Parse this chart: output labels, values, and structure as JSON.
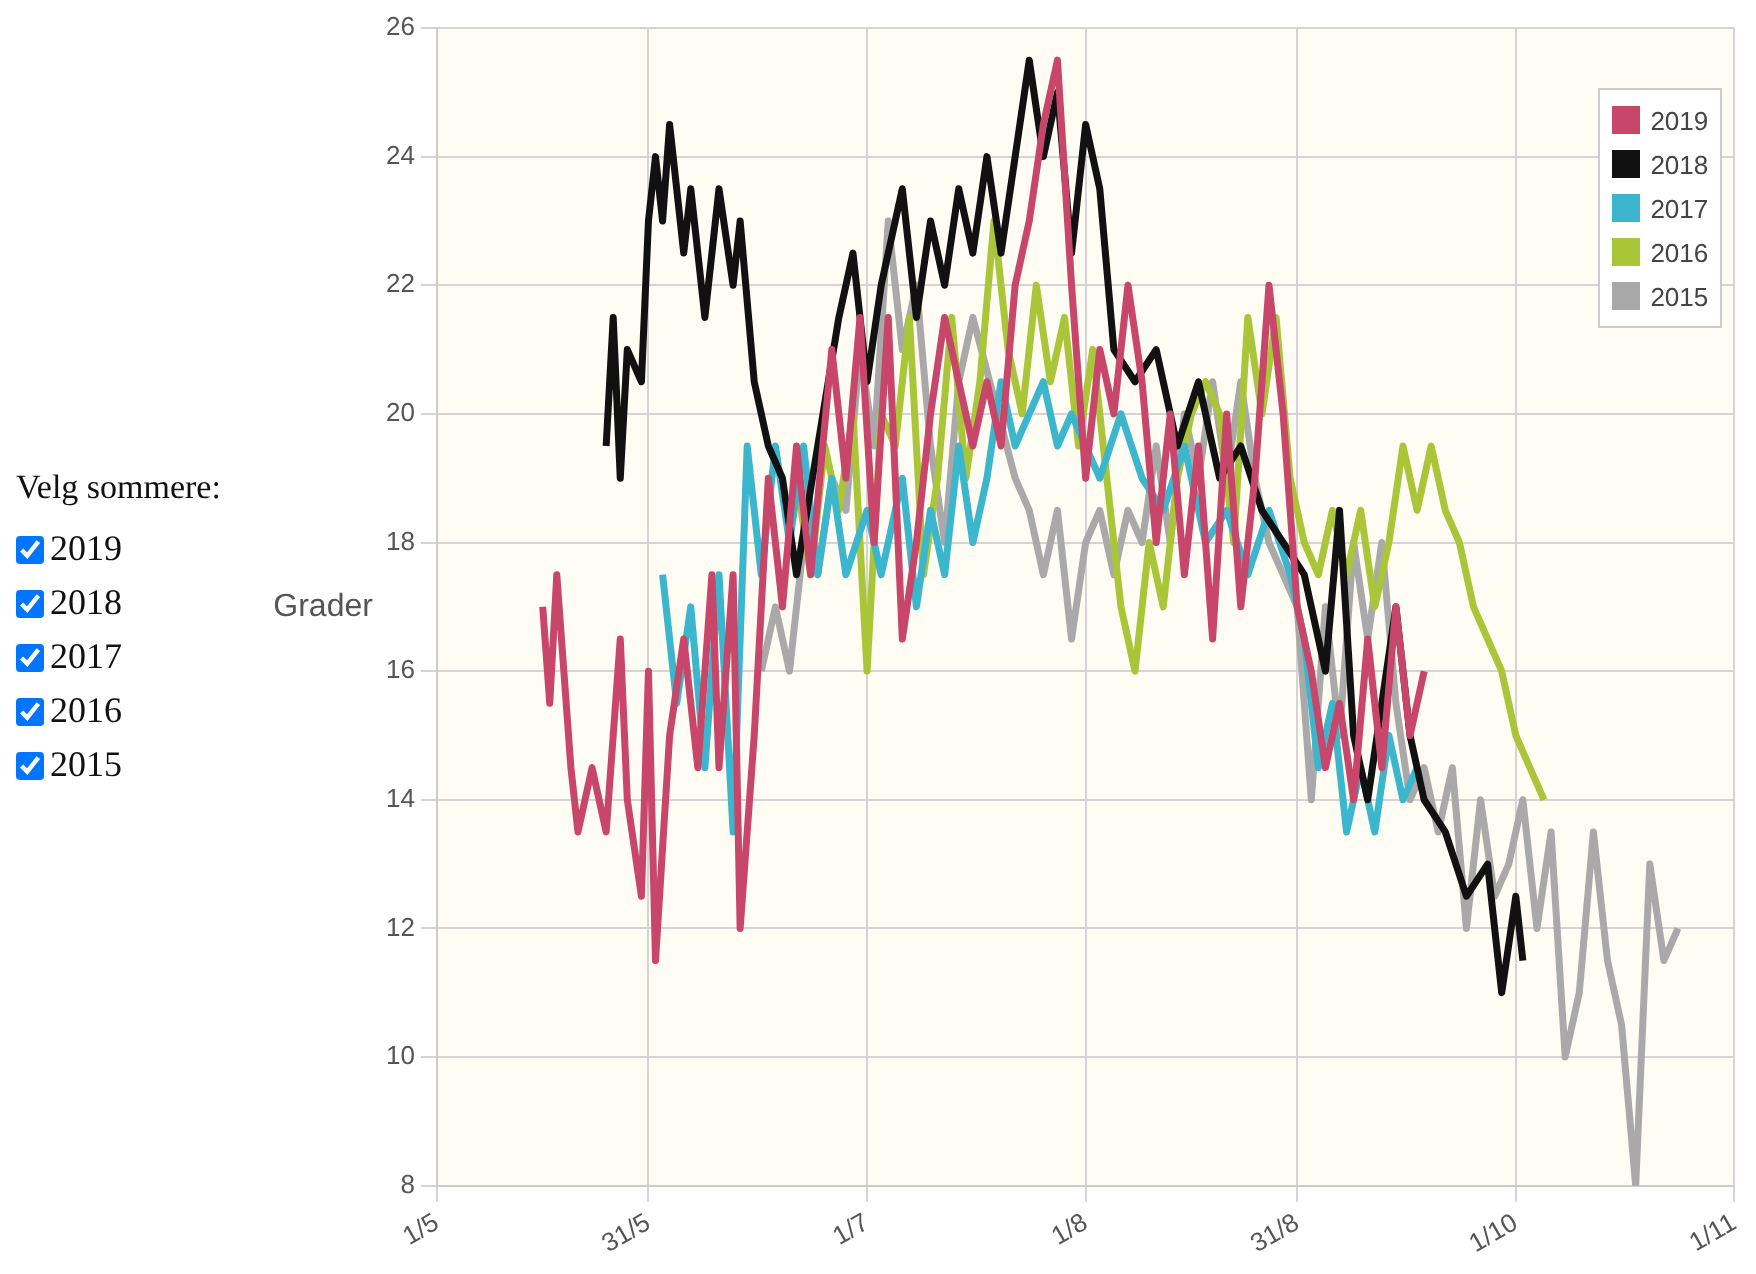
{
  "chart_data": {
    "type": "line",
    "ylabel": "Grader",
    "annotations": [
      "Velg sommere:"
    ],
    "xlim": [
      "--05-01",
      "--11-01"
    ],
    "xticks": [
      {
        "value": "--05-01",
        "label": "1/5"
      },
      {
        "value": "--05-31",
        "label": "31/5"
      },
      {
        "value": "--07-01",
        "label": "1/7"
      },
      {
        "value": "--08-01",
        "label": "1/8"
      },
      {
        "value": "--08-31",
        "label": "31/8"
      },
      {
        "value": "--10-01",
        "label": "1/10"
      },
      {
        "value": "--11-01",
        "label": "1/11"
      }
    ],
    "ylim": [
      8,
      26
    ],
    "yticks": [
      8,
      10,
      12,
      14,
      16,
      18,
      20,
      22,
      24,
      26
    ],
    "grid": true,
    "legend": "top right",
    "marker": "none",
    "series": [
      {
        "name": "2019",
        "color": "#c8466a",
        "x": [
          "--05-16",
          "--05-17",
          "--05-18",
          "--05-20",
          "--05-21",
          "--05-23",
          "--05-25",
          "--05-27",
          "--05-28",
          "--05-30",
          "--05-31",
          "--06-01",
          "--06-03",
          "--06-05",
          "--06-07",
          "--06-09",
          "--06-10",
          "--06-12",
          "--06-13",
          "--06-15",
          "--06-17",
          "--06-19",
          "--06-21",
          "--06-23",
          "--06-26",
          "--06-28",
          "--06-30",
          "--07-02",
          "--07-04",
          "--07-06",
          "--07-08",
          "--07-10",
          "--07-12",
          "--07-14",
          "--07-16",
          "--07-18",
          "--07-20",
          "--07-22",
          "--07-24",
          "--07-26",
          "--07-28",
          "--07-30",
          "--08-01",
          "--08-03",
          "--08-05",
          "--08-07",
          "--08-09",
          "--08-11",
          "--08-13",
          "--08-15",
          "--08-17",
          "--08-19",
          "--08-21",
          "--08-23",
          "--08-25",
          "--08-27",
          "--08-29",
          "--08-31",
          "--09-02",
          "--09-04",
          "--09-06",
          "--09-08",
          "--09-10",
          "--09-12",
          "--09-14",
          "--09-16",
          "--09-18"
        ],
        "values": [
          17,
          15.5,
          17.5,
          14.5,
          13.5,
          14.5,
          13.5,
          16.5,
          14,
          12.5,
          16,
          11.5,
          15,
          16.5,
          14.5,
          17.5,
          14.5,
          17.5,
          12,
          15,
          19,
          17,
          19.5,
          17.5,
          21,
          19,
          21.5,
          18,
          21.5,
          16.5,
          18,
          20,
          21.5,
          20.5,
          19.5,
          20.5,
          19.5,
          22,
          23,
          24.5,
          25.5,
          22,
          19,
          21,
          20,
          22,
          20.5,
          18,
          20,
          17.5,
          19.5,
          16.5,
          20,
          17,
          19,
          22,
          20,
          17,
          16,
          14.5,
          15.5,
          14,
          16.5,
          14.5,
          17,
          15,
          16
        ]
      },
      {
        "name": "2018",
        "color": "#111111",
        "x": [
          "--05-25",
          "--05-26",
          "--05-27",
          "--05-28",
          "--05-30",
          "--05-31",
          "--06-01",
          "--06-02",
          "--06-03",
          "--06-05",
          "--06-06",
          "--06-08",
          "--06-10",
          "--06-12",
          "--06-13",
          "--06-15",
          "--06-17",
          "--06-19",
          "--06-21",
          "--06-24",
          "--06-27",
          "--06-29",
          "--07-01",
          "--07-03",
          "--07-06",
          "--07-08",
          "--07-10",
          "--07-12",
          "--07-14",
          "--07-16",
          "--07-18",
          "--07-20",
          "--07-22",
          "--07-24",
          "--07-26",
          "--07-28",
          "--07-30",
          "--08-01",
          "--08-03",
          "--08-05",
          "--08-08",
          "--08-11",
          "--08-14",
          "--08-17",
          "--08-20",
          "--08-23",
          "--08-26",
          "--08-29",
          "--09-01",
          "--09-04",
          "--09-06",
          "--09-08",
          "--09-10",
          "--09-12",
          "--09-14",
          "--09-16",
          "--09-18",
          "--09-21",
          "--09-24",
          "--09-27",
          "--09-29",
          "--10-01",
          "--10-02"
        ],
        "values": [
          19.5,
          21.5,
          19,
          21,
          20.5,
          23,
          24,
          23,
          24.5,
          22.5,
          23.5,
          21.5,
          23.5,
          22,
          23,
          20.5,
          19.5,
          19,
          17.5,
          19.5,
          21.5,
          22.5,
          20.5,
          22,
          23.5,
          21.5,
          23,
          22,
          23.5,
          22.5,
          24,
          22.5,
          24,
          25.5,
          24,
          25,
          22.5,
          24.5,
          23.5,
          21,
          20.5,
          21,
          19.5,
          20.5,
          19,
          19.5,
          18.5,
          18,
          17.5,
          16,
          18.5,
          15,
          14,
          15.5,
          17,
          15,
          14,
          13.5,
          12.5,
          13,
          11,
          12.5,
          11.5
        ]
      },
      {
        "name": "2017",
        "color": "#3bb6cc",
        "x": [
          "--06-02",
          "--06-04",
          "--06-06",
          "--06-08",
          "--06-10",
          "--06-12",
          "--06-14",
          "--06-16",
          "--06-18",
          "--06-20",
          "--06-22",
          "--06-24",
          "--06-26",
          "--06-28",
          "--07-01",
          "--07-03",
          "--07-06",
          "--07-08",
          "--07-10",
          "--07-12",
          "--07-14",
          "--07-16",
          "--07-18",
          "--07-20",
          "--07-22",
          "--07-24",
          "--07-26",
          "--07-28",
          "--07-30",
          "--08-01",
          "--08-03",
          "--08-06",
          "--08-09",
          "--08-12",
          "--08-15",
          "--08-18",
          "--08-21",
          "--08-24",
          "--08-27",
          "--08-30",
          "--09-01",
          "--09-03",
          "--09-05",
          "--09-07",
          "--09-09",
          "--09-11",
          "--09-13",
          "--09-15",
          "--09-17"
        ],
        "values": [
          17.5,
          15.5,
          17,
          14.5,
          17.5,
          13.5,
          19.5,
          17.5,
          19.5,
          18,
          19.5,
          17.5,
          19,
          17.5,
          18.5,
          17.5,
          19,
          17,
          18.5,
          17.5,
          19.5,
          18,
          19,
          20.5,
          19.5,
          20,
          20.5,
          19.5,
          20,
          19.5,
          19,
          20,
          19,
          18.5,
          19.5,
          18,
          18.5,
          17.5,
          18.5,
          17.5,
          16.5,
          14.5,
          15.5,
          13.5,
          14.5,
          13.5,
          15,
          14,
          14.5
        ]
      },
      {
        "name": "2016",
        "color": "#abc539",
        "x": [
          "--06-21",
          "--06-23",
          "--06-25",
          "--06-27",
          "--06-29",
          "--07-01",
          "--07-03",
          "--07-05",
          "--07-07",
          "--07-09",
          "--07-11",
          "--07-13",
          "--07-15",
          "--07-17",
          "--07-19",
          "--07-21",
          "--07-23",
          "--07-25",
          "--07-27",
          "--07-29",
          "--07-31",
          "--08-02",
          "--08-04",
          "--08-06",
          "--08-08",
          "--08-10",
          "--08-12",
          "--08-14",
          "--08-16",
          "--08-18",
          "--08-20",
          "--08-22",
          "--08-24",
          "--08-26",
          "--08-28",
          "--08-30",
          "--09-01",
          "--09-03",
          "--09-05",
          "--09-07",
          "--09-09",
          "--09-11",
          "--09-13",
          "--09-15",
          "--09-17",
          "--09-19",
          "--09-21",
          "--09-23",
          "--09-25",
          "--09-27",
          "--09-29",
          "--10-01",
          "--10-03",
          "--10-05"
        ],
        "values": [
          19,
          17.5,
          19.5,
          18.5,
          20,
          16,
          20,
          19.5,
          21.5,
          17.5,
          19,
          21.5,
          19,
          20.5,
          23,
          21,
          20,
          22,
          20.5,
          21.5,
          19.5,
          21,
          19,
          17,
          16,
          18,
          17,
          19,
          20,
          20.5,
          20,
          18,
          21.5,
          20,
          21.5,
          19,
          18,
          17.5,
          18.5,
          17.5,
          18.5,
          17,
          18,
          19.5,
          18.5,
          19.5,
          18.5,
          18,
          17,
          16.5,
          16,
          15,
          14.5,
          14
        ]
      },
      {
        "name": "2015",
        "color": "#a9a9a9",
        "x": [
          "--06-16",
          "--06-18",
          "--06-20",
          "--06-22",
          "--06-24",
          "--06-26",
          "--06-28",
          "--06-30",
          "--07-02",
          "--07-04",
          "--07-06",
          "--07-08",
          "--07-10",
          "--07-12",
          "--07-14",
          "--07-16",
          "--07-22",
          "--07-24",
          "--07-26",
          "--07-28",
          "--07-30",
          "--08-01",
          "--08-03",
          "--08-05",
          "--08-07",
          "--08-09",
          "--08-11",
          "--08-13",
          "--08-15",
          "--08-17",
          "--08-19",
          "--08-21",
          "--08-23",
          "--08-25",
          "--08-27",
          "--08-29",
          "--08-31",
          "--09-02",
          "--09-04",
          "--09-06",
          "--09-08",
          "--09-10",
          "--09-12",
          "--09-14",
          "--09-16",
          "--09-18",
          "--09-20",
          "--09-22",
          "--09-24",
          "--09-26",
          "--09-28",
          "--09-30",
          "--10-02",
          "--10-04",
          "--10-06",
          "--10-08",
          "--10-10",
          "--10-12",
          "--10-14",
          "--10-16",
          "--10-18",
          "--10-20",
          "--10-22",
          "--10-24"
        ],
        "values": [
          16,
          17,
          16,
          18,
          17.5,
          19,
          18.5,
          21,
          19.5,
          23,
          21,
          22,
          19.5,
          18,
          20.5,
          21.5,
          19,
          18.5,
          17.5,
          18.5,
          16.5,
          18,
          18.5,
          17.5,
          18.5,
          18,
          19.5,
          18,
          20,
          19,
          20.5,
          19,
          20.5,
          19,
          18,
          17.5,
          17,
          14,
          17,
          15,
          18,
          16.5,
          18,
          15.5,
          14,
          14.5,
          13.5,
          14.5,
          12,
          14,
          12.5,
          13,
          14,
          12,
          13.5,
          10,
          11,
          13.5,
          11.5,
          10.5,
          8,
          13,
          11.5,
          12
        ]
      }
    ]
  }
}
